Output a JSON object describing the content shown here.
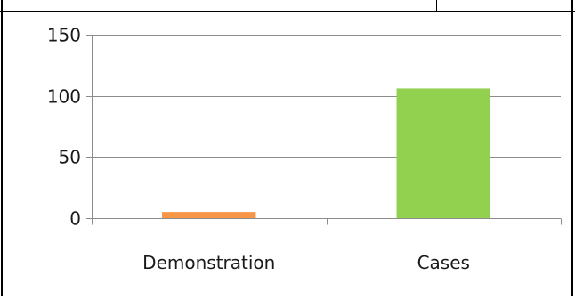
{
  "chart_data": {
    "type": "bar",
    "categories": [
      "Demonstration",
      "Cases"
    ],
    "values": [
      5,
      106
    ],
    "bar_colors": [
      "#f79646",
      "#92d050"
    ],
    "ylim": [
      0,
      150
    ],
    "yticks": [
      0,
      50,
      100,
      150
    ],
    "grid": true,
    "legend": "none"
  }
}
